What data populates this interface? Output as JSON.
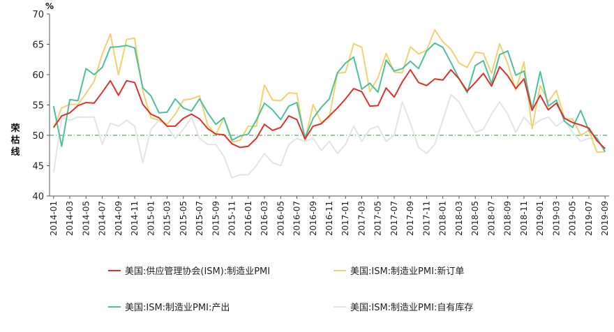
{
  "chart_data": {
    "type": "line",
    "ylabel": "荣枯线",
    "yunit": "%",
    "ylim": [
      40,
      70
    ],
    "yticks": [
      40,
      45,
      50,
      55,
      60,
      65,
      70
    ],
    "reference_line": {
      "value": 50,
      "color": "#2e9a2e"
    },
    "grid": false,
    "legend_position": "bottom",
    "x": [
      "2014-01",
      "2014-02",
      "2014-03",
      "2014-04",
      "2014-05",
      "2014-06",
      "2014-07",
      "2014-08",
      "2014-09",
      "2014-10",
      "2014-11",
      "2014-12",
      "2015-01",
      "2015-02",
      "2015-03",
      "2015-04",
      "2015-05",
      "2015-06",
      "2015-07",
      "2015-08",
      "2015-09",
      "2015-10",
      "2015-11",
      "2015-12",
      "2016-01",
      "2016-02",
      "2016-03",
      "2016-04",
      "2016-05",
      "2016-06",
      "2016-07",
      "2016-08",
      "2016-09",
      "2016-10",
      "2016-11",
      "2016-12",
      "2017-01",
      "2017-02",
      "2017-03",
      "2017-04",
      "2017-05",
      "2017-06",
      "2017-07",
      "2017-08",
      "2017-09",
      "2017-10",
      "2017-11",
      "2017-12",
      "2018-01",
      "2018-02",
      "2018-03",
      "2018-04",
      "2018-05",
      "2018-06",
      "2018-07",
      "2018-08",
      "2018-09",
      "2018-10",
      "2018-11",
      "2018-12",
      "2019-01",
      "2019-02",
      "2019-03",
      "2019-04",
      "2019-05",
      "2019-06",
      "2019-07",
      "2019-08",
      "2019-09"
    ],
    "xtick_labels": [
      "2014-01",
      "2014-03",
      "2014-05",
      "2014-07",
      "2014-09",
      "2014-11",
      "2015-01",
      "2015-03",
      "2015-05",
      "2015-07",
      "2015-09",
      "2015-11",
      "2016-01",
      "2016-03",
      "2016-05",
      "2016-07",
      "2016-09",
      "2016-11",
      "2017-01",
      "2017-03",
      "2017-05",
      "2017-07",
      "2017-09",
      "2017-11",
      "2018-01",
      "2018-03",
      "2018-05",
      "2018-07",
      "2018-09",
      "2018-11",
      "2019-01",
      "2019-03",
      "2019-05",
      "2019-07",
      "2019-09"
    ],
    "series": [
      {
        "name": "美国:供应管理协会(ISM):制造业PMI",
        "color": "#e0302a",
        "values": [
          51.3,
          53.2,
          53.7,
          54.9,
          55.4,
          55.3,
          57.1,
          59.0,
          56.6,
          59.0,
          58.7,
          55.1,
          53.5,
          52.9,
          51.5,
          51.5,
          52.8,
          53.5,
          52.7,
          51.1,
          50.2,
          50.1,
          48.6,
          48.0,
          48.2,
          49.5,
          51.8,
          50.8,
          51.3,
          53.2,
          52.6,
          49.4,
          51.5,
          51.9,
          53.2,
          54.5,
          56.0,
          57.7,
          57.2,
          54.8,
          54.9,
          57.8,
          56.3,
          58.8,
          60.8,
          58.7,
          58.2,
          59.3,
          59.1,
          60.8,
          59.3,
          57.3,
          58.7,
          60.2,
          58.1,
          61.3,
          59.8,
          57.7,
          59.3,
          54.1,
          56.6,
          54.2,
          55.3,
          52.8,
          52.1,
          51.7,
          51.2,
          49.1,
          47.8
        ]
      },
      {
        "name": "美国:ISM:制造业PMI:新订单",
        "color": "#f0d270",
        "values": [
          51.2,
          54.5,
          55.1,
          55.1,
          56.9,
          58.9,
          63.4,
          66.7,
          60.0,
          65.8,
          66.0,
          57.3,
          52.9,
          52.5,
          51.8,
          53.5,
          55.8,
          56.0,
          56.5,
          51.7,
          50.1,
          52.9,
          48.9,
          49.2,
          51.5,
          51.5,
          58.3,
          55.8,
          55.7,
          57.0,
          56.9,
          49.1,
          55.1,
          52.1,
          53.0,
          60.2,
          60.4,
          65.1,
          64.5,
          57.2,
          59.5,
          63.5,
          60.4,
          60.3,
          64.6,
          63.4,
          64.0,
          67.4,
          65.4,
          64.2,
          61.9,
          61.2,
          63.7,
          63.5,
          60.2,
          65.1,
          61.8,
          57.4,
          62.1,
          51.1,
          58.2,
          55.5,
          57.4,
          52.7,
          52.7,
          50.0,
          50.8,
          47.2,
          47.3
        ]
      },
      {
        "name": "美国:ISM:制造业PMI:产出",
        "color": "#4fbf9c",
        "values": [
          54.8,
          48.2,
          55.9,
          55.7,
          61.0,
          60.0,
          61.2,
          64.5,
          64.6,
          64.8,
          64.4,
          57.8,
          56.5,
          53.7,
          53.8,
          56.0,
          54.5,
          54.0,
          56.0,
          53.7,
          51.8,
          52.9,
          49.2,
          49.9,
          50.2,
          52.5,
          55.3,
          54.2,
          52.6,
          54.8,
          55.4,
          49.6,
          52.8,
          54.6,
          56.0,
          60.3,
          61.9,
          62.9,
          57.6,
          58.6,
          57.1,
          62.4,
          60.6,
          61.0,
          62.2,
          61.0,
          63.9,
          65.2,
          64.5,
          62.0,
          59.3,
          57.0,
          61.5,
          62.3,
          58.5,
          63.3,
          63.9,
          59.9,
          60.6,
          54.3,
          60.5,
          54.8,
          55.8,
          52.3,
          51.3,
          54.1,
          50.8,
          49.5,
          47.3
        ]
      },
      {
        "name": "美国:ISM:制造业PMI:自有库存",
        "color": "#e4e4e4",
        "values": [
          43.9,
          52.9,
          52.5,
          53.0,
          53.0,
          53.0,
          48.5,
          52.0,
          51.5,
          52.5,
          51.5,
          45.5,
          51.0,
          52.5,
          51.5,
          49.5,
          51.0,
          53.0,
          49.5,
          48.5,
          48.5,
          46.5,
          43.0,
          43.5,
          43.5,
          45.0,
          47.0,
          45.5,
          45.0,
          48.5,
          49.5,
          49.0,
          49.5,
          47.5,
          49.0,
          47.0,
          48.5,
          51.5,
          49.0,
          51.0,
          51.5,
          49.0,
          50.0,
          55.5,
          52.0,
          48.0,
          47.0,
          48.5,
          52.5,
          56.7,
          55.5,
          53.0,
          50.5,
          51.0,
          53.5,
          55.5,
          53.5,
          50.5,
          53.0,
          51.5,
          52.5,
          53.0,
          51.5,
          52.5,
          50.5,
          49.0,
          49.5,
          49.5,
          47.5
        ]
      }
    ]
  }
}
